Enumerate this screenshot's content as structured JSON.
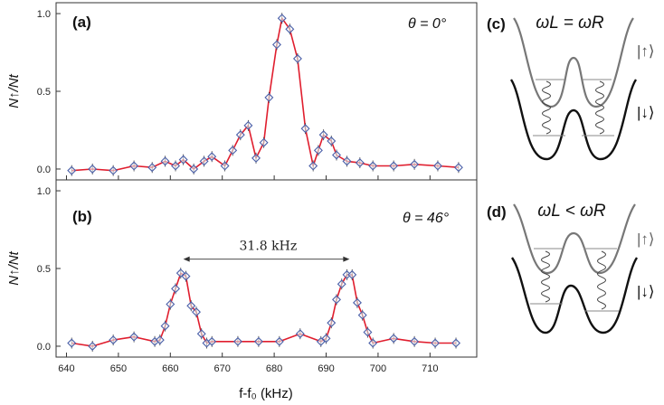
{
  "chart_data": [
    {
      "type": "line",
      "panel_label": "(a)",
      "annotation": "θ = 0°",
      "ylabel": "N↑/Nt",
      "xlim": [
        638,
        719
      ],
      "ylim": [
        -0.07,
        1.07
      ],
      "yticks": [
        "0.0",
        "0.5",
        "1.0"
      ],
      "ytick_values": [
        0,
        0.5,
        1.0
      ],
      "series": [
        {
          "color": "#e01e2e",
          "marker_color": "#4a5fa8",
          "x": [
            641,
            645,
            649,
            653,
            656.5,
            659,
            661,
            662.5,
            664.5,
            666.5,
            668,
            670.5,
            672,
            673.5,
            675,
            676.5,
            678,
            679,
            680.5,
            681.5,
            683,
            684.5,
            686,
            687.5,
            688.5,
            689.5,
            691,
            692,
            694,
            696.5,
            699,
            703,
            707,
            711.5,
            715.5
          ],
          "y": [
            -0.01,
            0.0,
            -0.01,
            0.02,
            0.01,
            0.05,
            0.02,
            0.06,
            0.0,
            0.05,
            0.08,
            0.02,
            0.12,
            0.22,
            0.28,
            0.07,
            0.17,
            0.46,
            0.8,
            0.97,
            0.9,
            0.71,
            0.26,
            0.02,
            0.12,
            0.22,
            0.18,
            0.09,
            0.05,
            0.04,
            0.02,
            0.02,
            0.03,
            0.02,
            0.01
          ]
        }
      ]
    },
    {
      "type": "line",
      "panel_label": "(b)",
      "annotation": "θ = 46°",
      "ylabel": "N↑/Nt",
      "xlabel": "f-f₀ (kHz)",
      "xlim": [
        638,
        719
      ],
      "ylim": [
        -0.07,
        1.07
      ],
      "xticks": [
        "640",
        "650",
        "660",
        "670",
        "680",
        "690",
        "700",
        "710"
      ],
      "xtick_values": [
        640,
        650,
        660,
        670,
        680,
        690,
        700,
        710
      ],
      "yticks": [
        "0.0",
        "0.5",
        "1.0"
      ],
      "ytick_values": [
        0,
        0.5,
        1.0
      ],
      "arrow_label": "31.8 kHz",
      "arrow_x": [
        662.5,
        694.5
      ],
      "arrow_y": 0.56,
      "series": [
        {
          "color": "#e01e2e",
          "marker_color": "#4a5fa8",
          "x": [
            641,
            645,
            649,
            653,
            657,
            658,
            659,
            660,
            661,
            662,
            663,
            664,
            665,
            666,
            667,
            668,
            673,
            677,
            681,
            685,
            689,
            690,
            691,
            692,
            693,
            694,
            695,
            696,
            697,
            698,
            699,
            703,
            707,
            711,
            715
          ],
          "y": [
            0.02,
            0.0,
            0.04,
            0.06,
            0.03,
            0.04,
            0.13,
            0.27,
            0.37,
            0.47,
            0.45,
            0.26,
            0.22,
            0.08,
            0.02,
            0.03,
            0.03,
            0.03,
            0.03,
            0.08,
            0.03,
            0.05,
            0.15,
            0.3,
            0.4,
            0.46,
            0.46,
            0.28,
            0.2,
            0.09,
            0.02,
            0.05,
            0.03,
            0.02,
            0.02
          ]
        }
      ]
    }
  ],
  "diagrams": [
    {
      "label": "(c)",
      "condition": "ωL = ωR",
      "upper_state": "|↑⟩",
      "lower_state": "|↓⟩"
    },
    {
      "label": "(d)",
      "condition": "ωL < ωR",
      "upper_state": "|↑⟩",
      "lower_state": "|↓⟩"
    }
  ]
}
